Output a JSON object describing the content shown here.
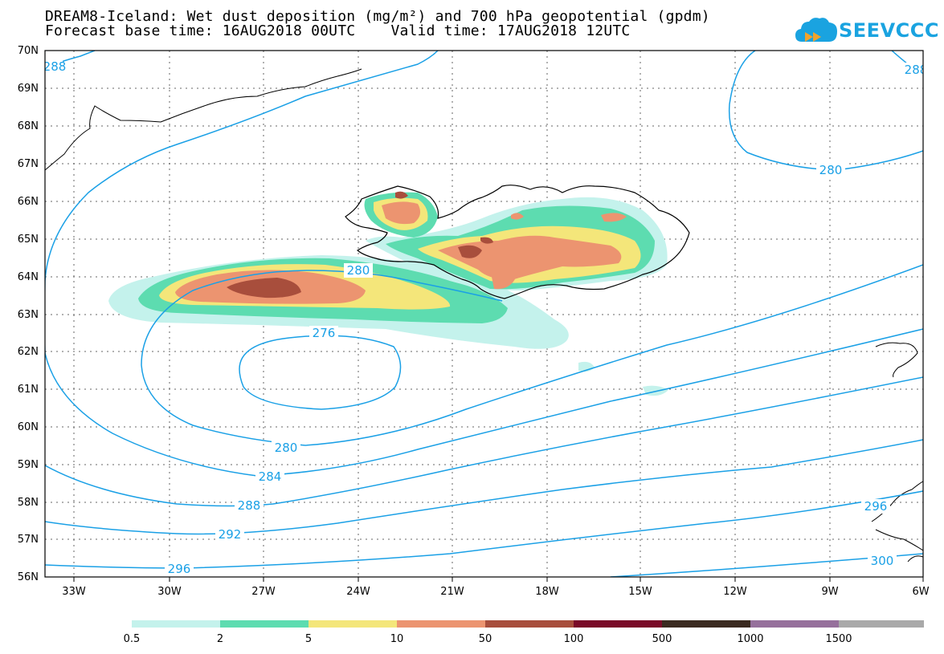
{
  "title_line1": "DREAM8-Iceland: Wet dust deposition (mg/m²) and 700 hPa geopotential (gpdm)",
  "title_line2": "Forecast base time: 16AUG2018 00UTC    Valid time: 17AUG2018 12UTC",
  "logo_text": "SEEVCCC",
  "lat_labels": [
    "70N",
    "69N",
    "68N",
    "67N",
    "66N",
    "65N",
    "64N",
    "63N",
    "62N",
    "61N",
    "60N",
    "59N",
    "58N",
    "57N",
    "56N"
  ],
  "lon_labels": [
    "33W",
    "30W",
    "27W",
    "24W",
    "21W",
    "18W",
    "15W",
    "12W",
    "9W",
    "6W"
  ],
  "contour_labels": [
    "288",
    "288",
    "280",
    "280",
    "276",
    "280",
    "284",
    "288",
    "292",
    "296",
    "296",
    "300"
  ],
  "colorbar": {
    "colors": [
      "#c4f2ec",
      "#5ddcb0",
      "#f4e67a",
      "#ec9470",
      "#a84e3c",
      "#7a0a28",
      "#3a2a20",
      "#96709c",
      "#a9a9a9"
    ],
    "labels": [
      "0.5",
      "2",
      "5",
      "10",
      "50",
      "100",
      "500",
      "1000",
      "1500"
    ]
  },
  "colors": {
    "contour": "#1aa0e6",
    "land_outline": "#000000"
  }
}
